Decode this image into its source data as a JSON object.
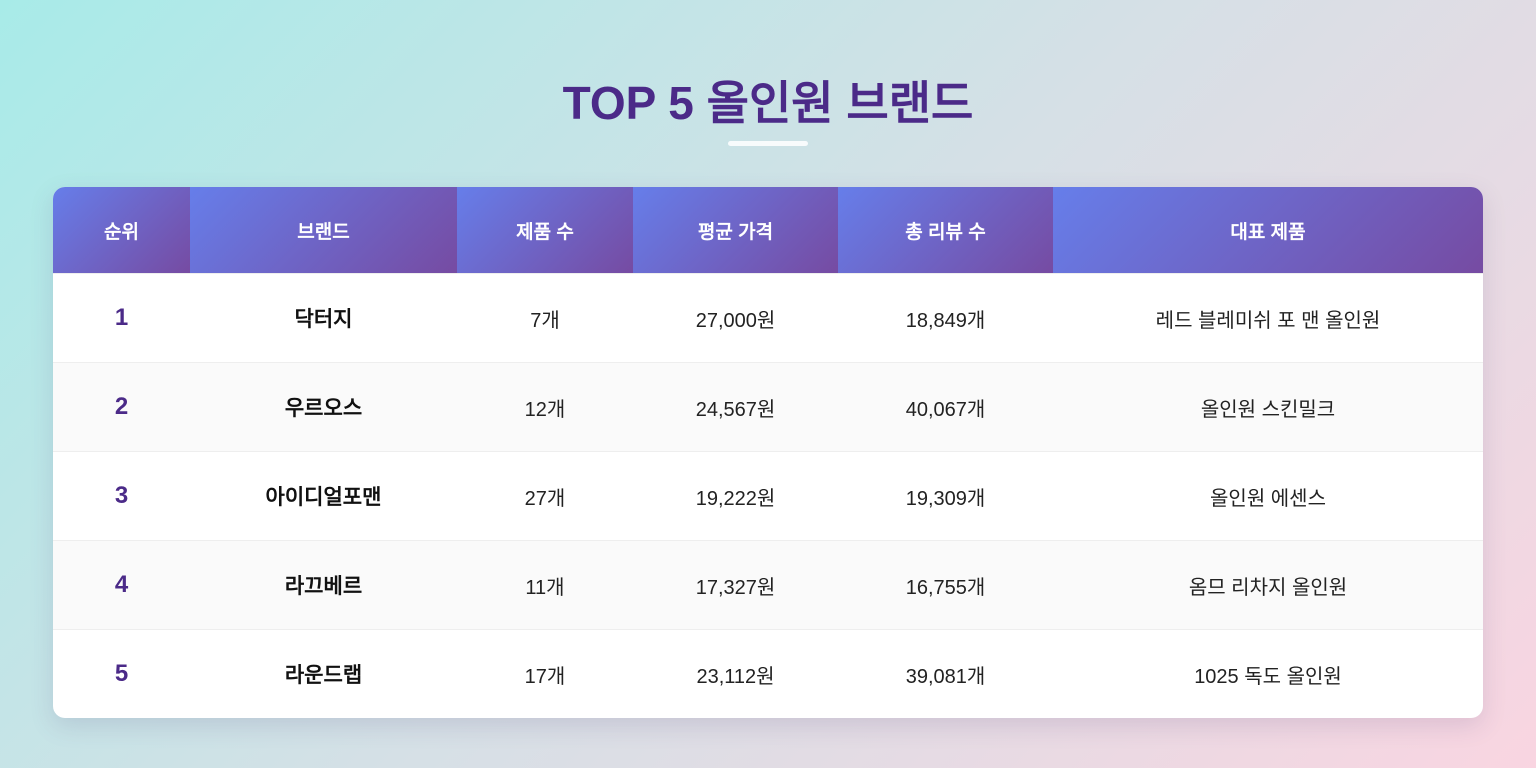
{
  "header": {
    "title": "TOP 5 올인원 브랜드"
  },
  "table": {
    "headers": [
      "순위",
      "브랜드",
      "제품 수",
      "평균 가격",
      "총 리뷰 수",
      "대표 제품"
    ],
    "rows": [
      [
        "1",
        "닥터지",
        "7개",
        "27,000원",
        "18,849개",
        "레드 블레미쉬 포 맨 올인원"
      ],
      [
        "2",
        "우르오스",
        "12개",
        "24,567원",
        "40,067개",
        "올인원 스킨밀크"
      ],
      [
        "3",
        "아이디얼포맨",
        "27개",
        "19,222원",
        "19,309개",
        "올인원 에센스"
      ],
      [
        "4",
        "라끄베르",
        "11개",
        "17,327원",
        "16,755개",
        "옴므 리차지 올인원"
      ],
      [
        "5",
        "라운드랩",
        "17개",
        "23,112원",
        "39,081개",
        "1025 독도 올인원"
      ]
    ]
  }
}
